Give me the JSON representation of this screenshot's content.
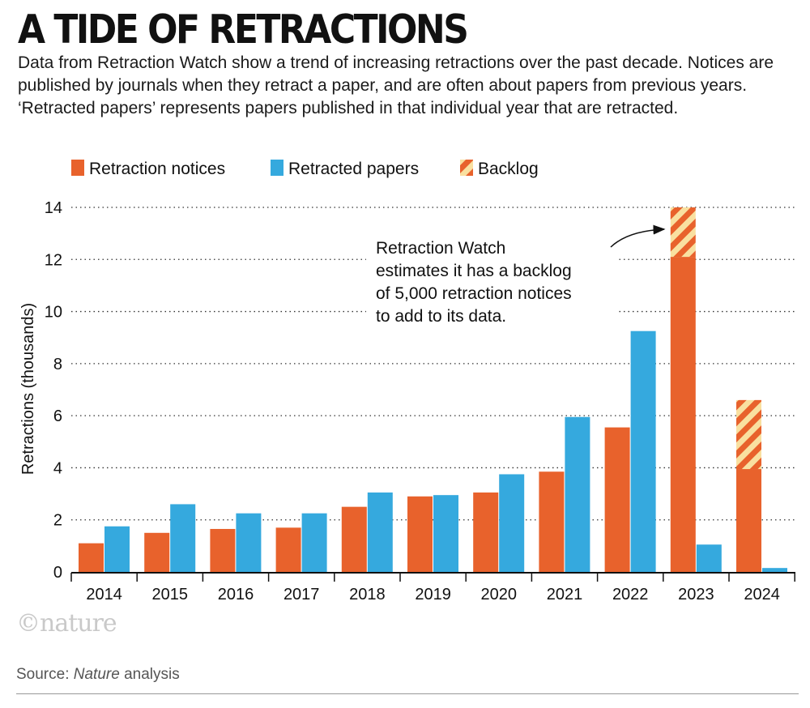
{
  "title": "A TIDE OF RETRACTIONS",
  "subtitle": "Data from Retraction Watch show a trend of increasing retractions over the past decade. Notices are published by journals when they retract a paper, and are often about papers from previous years. ‘Retracted papers’ represents papers published in that individual year that are retracted.",
  "logo": "©nature",
  "source": {
    "prefix": "Source: ",
    "name": "Nature",
    "suffix": " analysis"
  },
  "colors": {
    "notices": "#e8622c",
    "papers": "#35a9de",
    "backlog_stripe": "#f9e0a0"
  },
  "chart_data": {
    "type": "bar",
    "stacked_notices": true,
    "categories": [
      "2014",
      "2015",
      "2016",
      "2017",
      "2018",
      "2019",
      "2020",
      "2021",
      "2022",
      "2023",
      "2024"
    ],
    "series": [
      {
        "name": "Retraction notices",
        "values": [
          1.1,
          1.5,
          1.65,
          1.7,
          2.5,
          2.9,
          3.05,
          3.85,
          5.55,
          12.1,
          3.95
        ]
      },
      {
        "name": "Retracted papers",
        "values": [
          1.75,
          2.6,
          2.25,
          2.25,
          3.05,
          2.95,
          3.75,
          5.95,
          9.25,
          1.05,
          0.15
        ]
      },
      {
        "name": "Backlog",
        "values": [
          0,
          0,
          0,
          0,
          0,
          0,
          0,
          0,
          0,
          1.9,
          2.65
        ]
      }
    ],
    "ylabel": "Retractions (thousands)",
    "ylim": [
      0,
      14
    ],
    "yticks": [
      0,
      2,
      4,
      6,
      8,
      10,
      12,
      14
    ],
    "grid": true,
    "legend_position": "top-left",
    "annotation": {
      "lines": [
        "Retraction Watch",
        "estimates it has a backlog",
        "of 5,000 retraction notices",
        "to add to its data."
      ],
      "target_category": "2023"
    }
  }
}
